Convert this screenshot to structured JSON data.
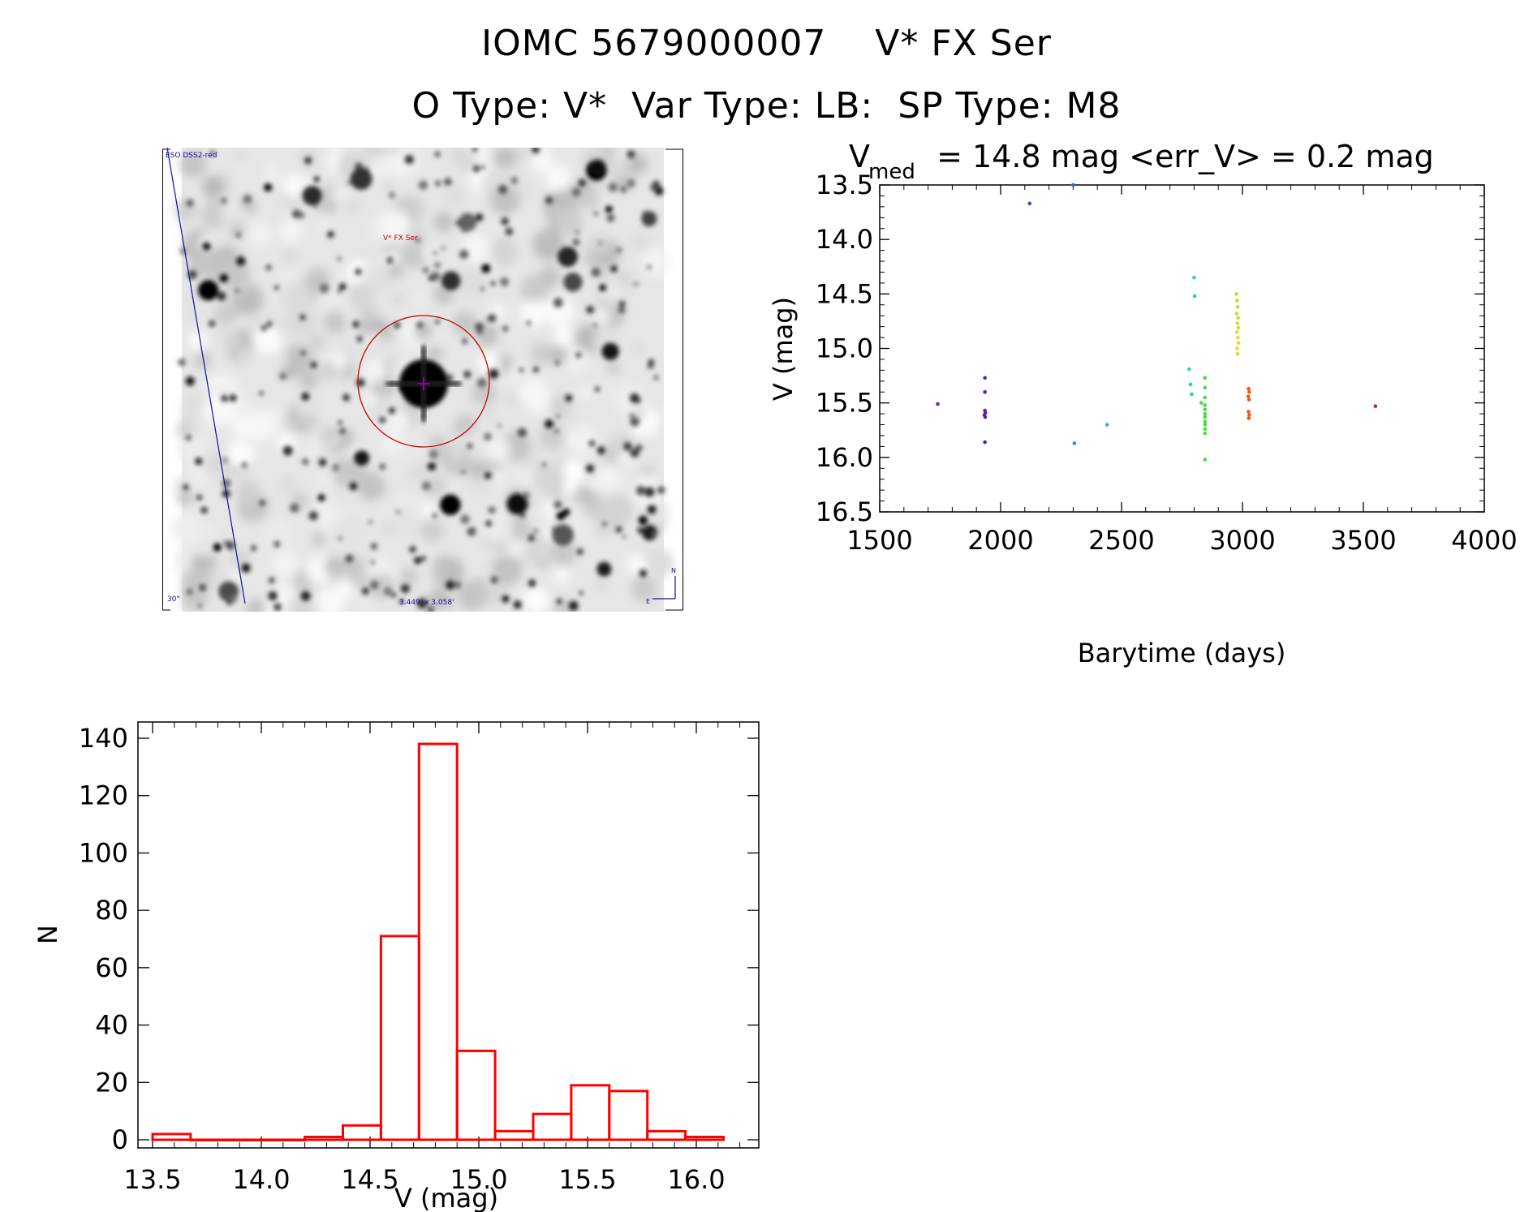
{
  "header": {
    "title_line1": "IOMC 5679000007    V* FX Ser",
    "title_line2": "O Type: V*  Var Type: LB:  SP Type: M8"
  },
  "finder_image": {
    "survey_label": "ESO DSS2-red",
    "target_label": "V* FX Ser",
    "scale_label": "30\"",
    "fov_label": "3.449' x 3.058'",
    "north_label": "N",
    "east_label": "E"
  },
  "chart_data": [
    {
      "type": "scatter",
      "title_main": "V",
      "title_sub": "med",
      "title_rest": " = 14.8 mag <err_V> = 0.2 mag",
      "xlabel": "Barytime (days)",
      "ylabel": "V (mag)",
      "xlim": [
        1500,
        4000
      ],
      "ylim": [
        16.5,
        13.5
      ],
      "y_inverted": true,
      "xticks": [
        "1500",
        "2000",
        "2500",
        "3000",
        "3500",
        "4000"
      ],
      "yticks": [
        "13.5",
        "14.0",
        "14.5",
        "15.0",
        "15.5",
        "16.0",
        "16.5"
      ],
      "points": [
        {
          "x": 1740,
          "y": 15.51,
          "color": "#7a1fa0"
        },
        {
          "x": 1935,
          "y": 15.27,
          "color": "#5a22a8"
        },
        {
          "x": 1935,
          "y": 15.4,
          "color": "#5a22a8"
        },
        {
          "x": 1935,
          "y": 15.57,
          "color": "#5a22a8"
        },
        {
          "x": 1937,
          "y": 15.59,
          "color": "#5a22a8"
        },
        {
          "x": 1933,
          "y": 15.61,
          "color": "#5a22a8"
        },
        {
          "x": 1936,
          "y": 15.63,
          "color": "#5a22a8"
        },
        {
          "x": 1935,
          "y": 15.86,
          "color": "#5a22a8"
        },
        {
          "x": 2120,
          "y": 13.67,
          "color": "#2a4fd6"
        },
        {
          "x": 2300,
          "y": 13.5,
          "color": "#1e6fe0"
        },
        {
          "x": 2305,
          "y": 15.87,
          "color": "#1a8fe6"
        },
        {
          "x": 2440,
          "y": 15.7,
          "color": "#20b4e8"
        },
        {
          "x": 2780,
          "y": 15.19,
          "color": "#20d6c8"
        },
        {
          "x": 2785,
          "y": 15.33,
          "color": "#20d6a8"
        },
        {
          "x": 2790,
          "y": 15.42,
          "color": "#20d6a8"
        },
        {
          "x": 2800,
          "y": 14.35,
          "color": "#28d890"
        },
        {
          "x": 2802,
          "y": 14.52,
          "color": "#28d890"
        },
        {
          "x": 2830,
          "y": 15.5,
          "color": "#40e040"
        },
        {
          "x": 2845,
          "y": 15.27,
          "color": "#40e040"
        },
        {
          "x": 2845,
          "y": 15.36,
          "color": "#40e040"
        },
        {
          "x": 2845,
          "y": 15.45,
          "color": "#40e040"
        },
        {
          "x": 2845,
          "y": 15.52,
          "color": "#40e040"
        },
        {
          "x": 2845,
          "y": 15.56,
          "color": "#40e040"
        },
        {
          "x": 2845,
          "y": 15.6,
          "color": "#40e040"
        },
        {
          "x": 2845,
          "y": 15.63,
          "color": "#40e040"
        },
        {
          "x": 2845,
          "y": 15.67,
          "color": "#40e040"
        },
        {
          "x": 2845,
          "y": 15.7,
          "color": "#40e040"
        },
        {
          "x": 2845,
          "y": 15.74,
          "color": "#40e040"
        },
        {
          "x": 2845,
          "y": 15.78,
          "color": "#40e040"
        },
        {
          "x": 2845,
          "y": 16.02,
          "color": "#40e040"
        },
        {
          "x": 2975,
          "y": 14.5,
          "color": "#b8e020"
        },
        {
          "x": 2978,
          "y": 14.56,
          "color": "#b8e020"
        },
        {
          "x": 2980,
          "y": 14.62,
          "color": "#c8e020"
        },
        {
          "x": 2976,
          "y": 14.68,
          "color": "#c8e020"
        },
        {
          "x": 2982,
          "y": 14.72,
          "color": "#c8e020"
        },
        {
          "x": 2979,
          "y": 14.77,
          "color": "#d2e020"
        },
        {
          "x": 2983,
          "y": 14.81,
          "color": "#d2e020"
        },
        {
          "x": 2977,
          "y": 14.85,
          "color": "#d8e020"
        },
        {
          "x": 2981,
          "y": 14.9,
          "color": "#d8e020"
        },
        {
          "x": 2984,
          "y": 14.95,
          "color": "#e0e020"
        },
        {
          "x": 2978,
          "y": 15.0,
          "color": "#e6dc20"
        },
        {
          "x": 2980,
          "y": 15.05,
          "color": "#e8d020"
        },
        {
          "x": 3025,
          "y": 15.37,
          "color": "#f05a10"
        },
        {
          "x": 3028,
          "y": 15.4,
          "color": "#f05a10"
        },
        {
          "x": 3024,
          "y": 15.44,
          "color": "#f05a10"
        },
        {
          "x": 3027,
          "y": 15.47,
          "color": "#f05a10"
        },
        {
          "x": 3025,
          "y": 15.58,
          "color": "#f05a10"
        },
        {
          "x": 3028,
          "y": 15.61,
          "color": "#f05a10"
        },
        {
          "x": 3026,
          "y": 15.64,
          "color": "#f05a10"
        },
        {
          "x": 3550,
          "y": 15.53,
          "color": "#e81818"
        }
      ]
    },
    {
      "type": "bar",
      "xlabel": "V (mag)",
      "ylabel": "N",
      "xlim": [
        13.5,
        16.25
      ],
      "ylim": [
        0,
        140
      ],
      "xticks": [
        "13.5",
        "14.0",
        "14.5",
        "15.0",
        "15.5",
        "16.0"
      ],
      "yticks": [
        "0",
        "20",
        "40",
        "60",
        "80",
        "100",
        "120",
        "140"
      ],
      "bin_edges": [
        13.5,
        13.675,
        13.85,
        14.025,
        14.2,
        14.375,
        14.55,
        14.725,
        14.9,
        15.075,
        15.25,
        15.425,
        15.6,
        15.775,
        15.95,
        16.125
      ],
      "values": [
        2,
        0,
        0,
        0,
        1,
        5,
        71,
        138,
        31,
        3,
        9,
        19,
        17,
        3,
        1
      ],
      "bar_color": "#ff0000"
    }
  ]
}
